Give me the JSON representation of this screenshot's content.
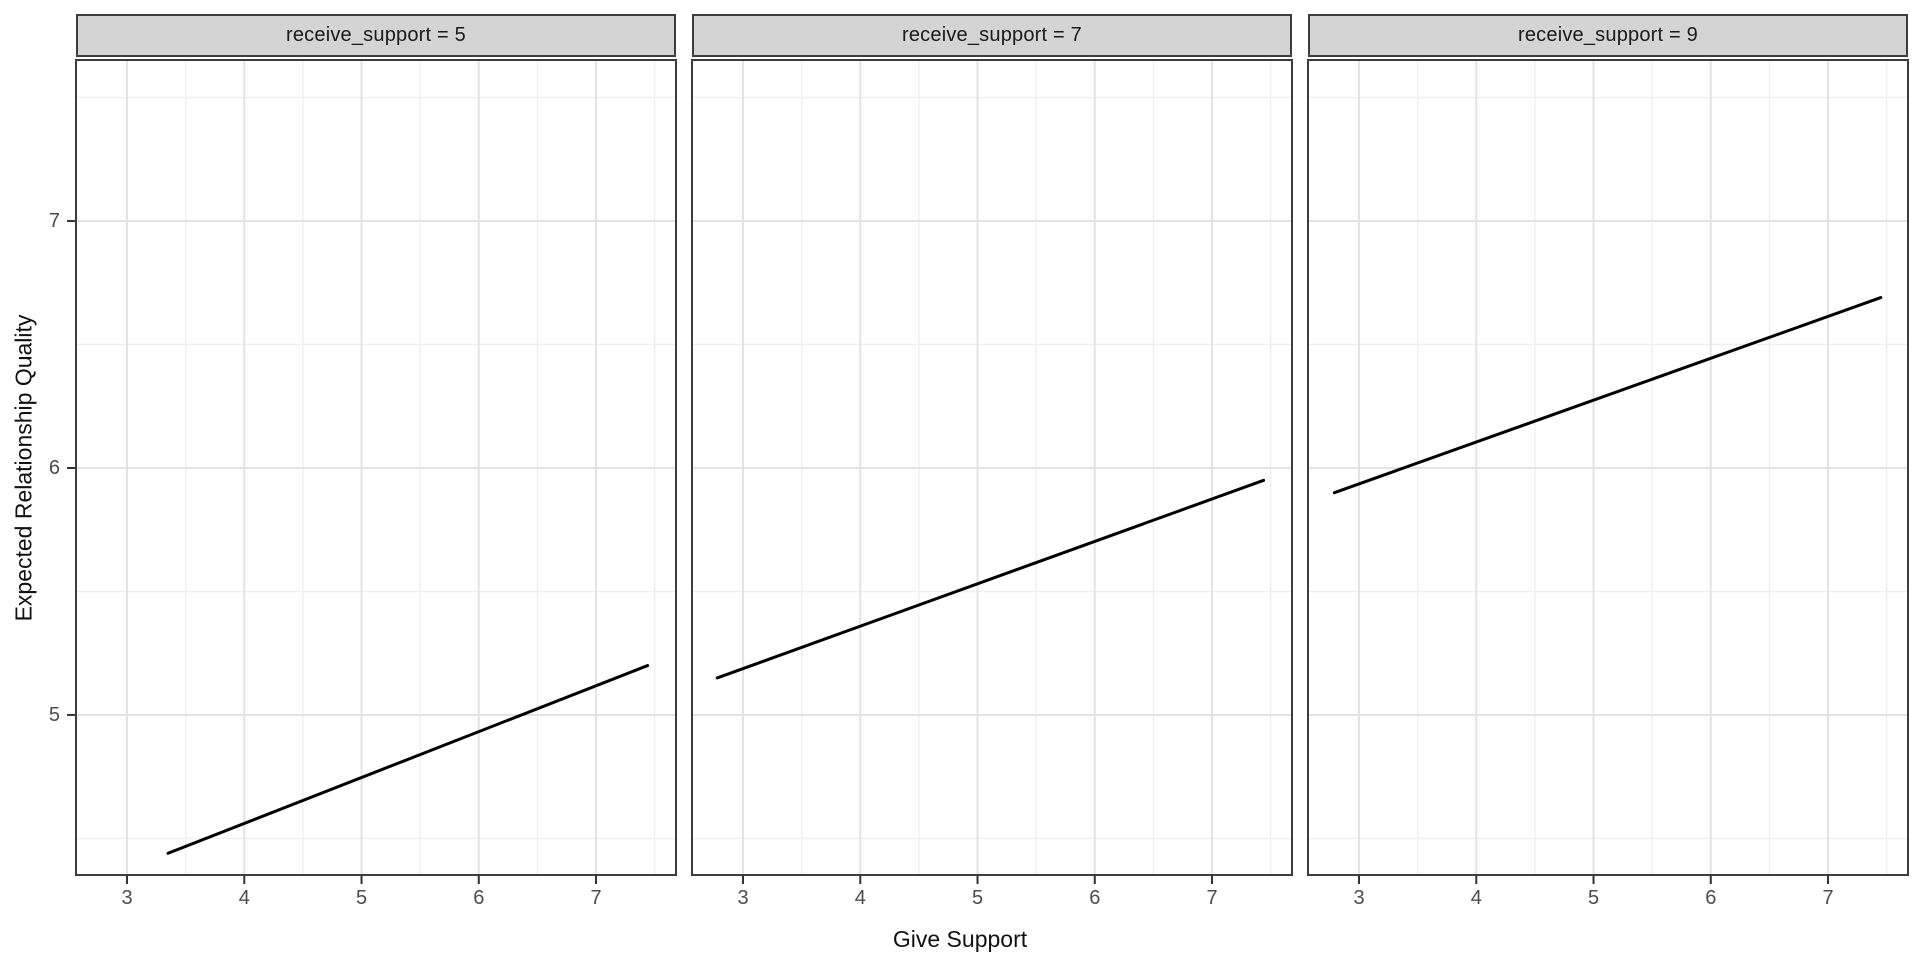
{
  "chart_data": {
    "type": "line",
    "title": "",
    "facet_variable": "receive_support",
    "facets": [
      {
        "label": "receive_support = 5",
        "series": {
          "name": "fitted line",
          "x": [
            3.35,
            7.44
          ],
          "y": [
            4.44,
            5.2
          ]
        }
      },
      {
        "label": "receive_support = 7",
        "series": {
          "name": "fitted line",
          "x": [
            2.78,
            7.44
          ],
          "y": [
            5.15,
            5.95
          ]
        }
      },
      {
        "label": "receive_support = 9",
        "series": {
          "name": "fitted line",
          "x": [
            2.79,
            7.45
          ],
          "y": [
            5.9,
            6.69
          ]
        }
      }
    ],
    "xlabel": "Give Support",
    "ylabel": "Expected Relationship Quality",
    "x_ticks": [
      3,
      4,
      5,
      6,
      7
    ],
    "y_ticks": [
      5,
      6,
      7
    ],
    "x_minor_gridlines": [
      3.5,
      4.5,
      5.5,
      6.5,
      7.5
    ],
    "y_minor_gridlines": [
      4.5,
      5.5,
      6.5,
      7.5
    ],
    "x_range": [
      2.565,
      7.682
    ],
    "y_range": [
      4.352,
      7.652
    ],
    "grid": "major and minor gridlines, light grey on white panel",
    "legend_position": "none",
    "colors": {
      "line": "#000000",
      "strip_fill": "#d4d4d4",
      "panel_border": "#3d3d3d",
      "grid_major": "#e3e3e3",
      "grid_minor": "#f0f0f0",
      "tick_mark": "#333333",
      "tick_label": "#4d4d4d",
      "axis_title": "#111111",
      "background": "#ffffff"
    }
  }
}
